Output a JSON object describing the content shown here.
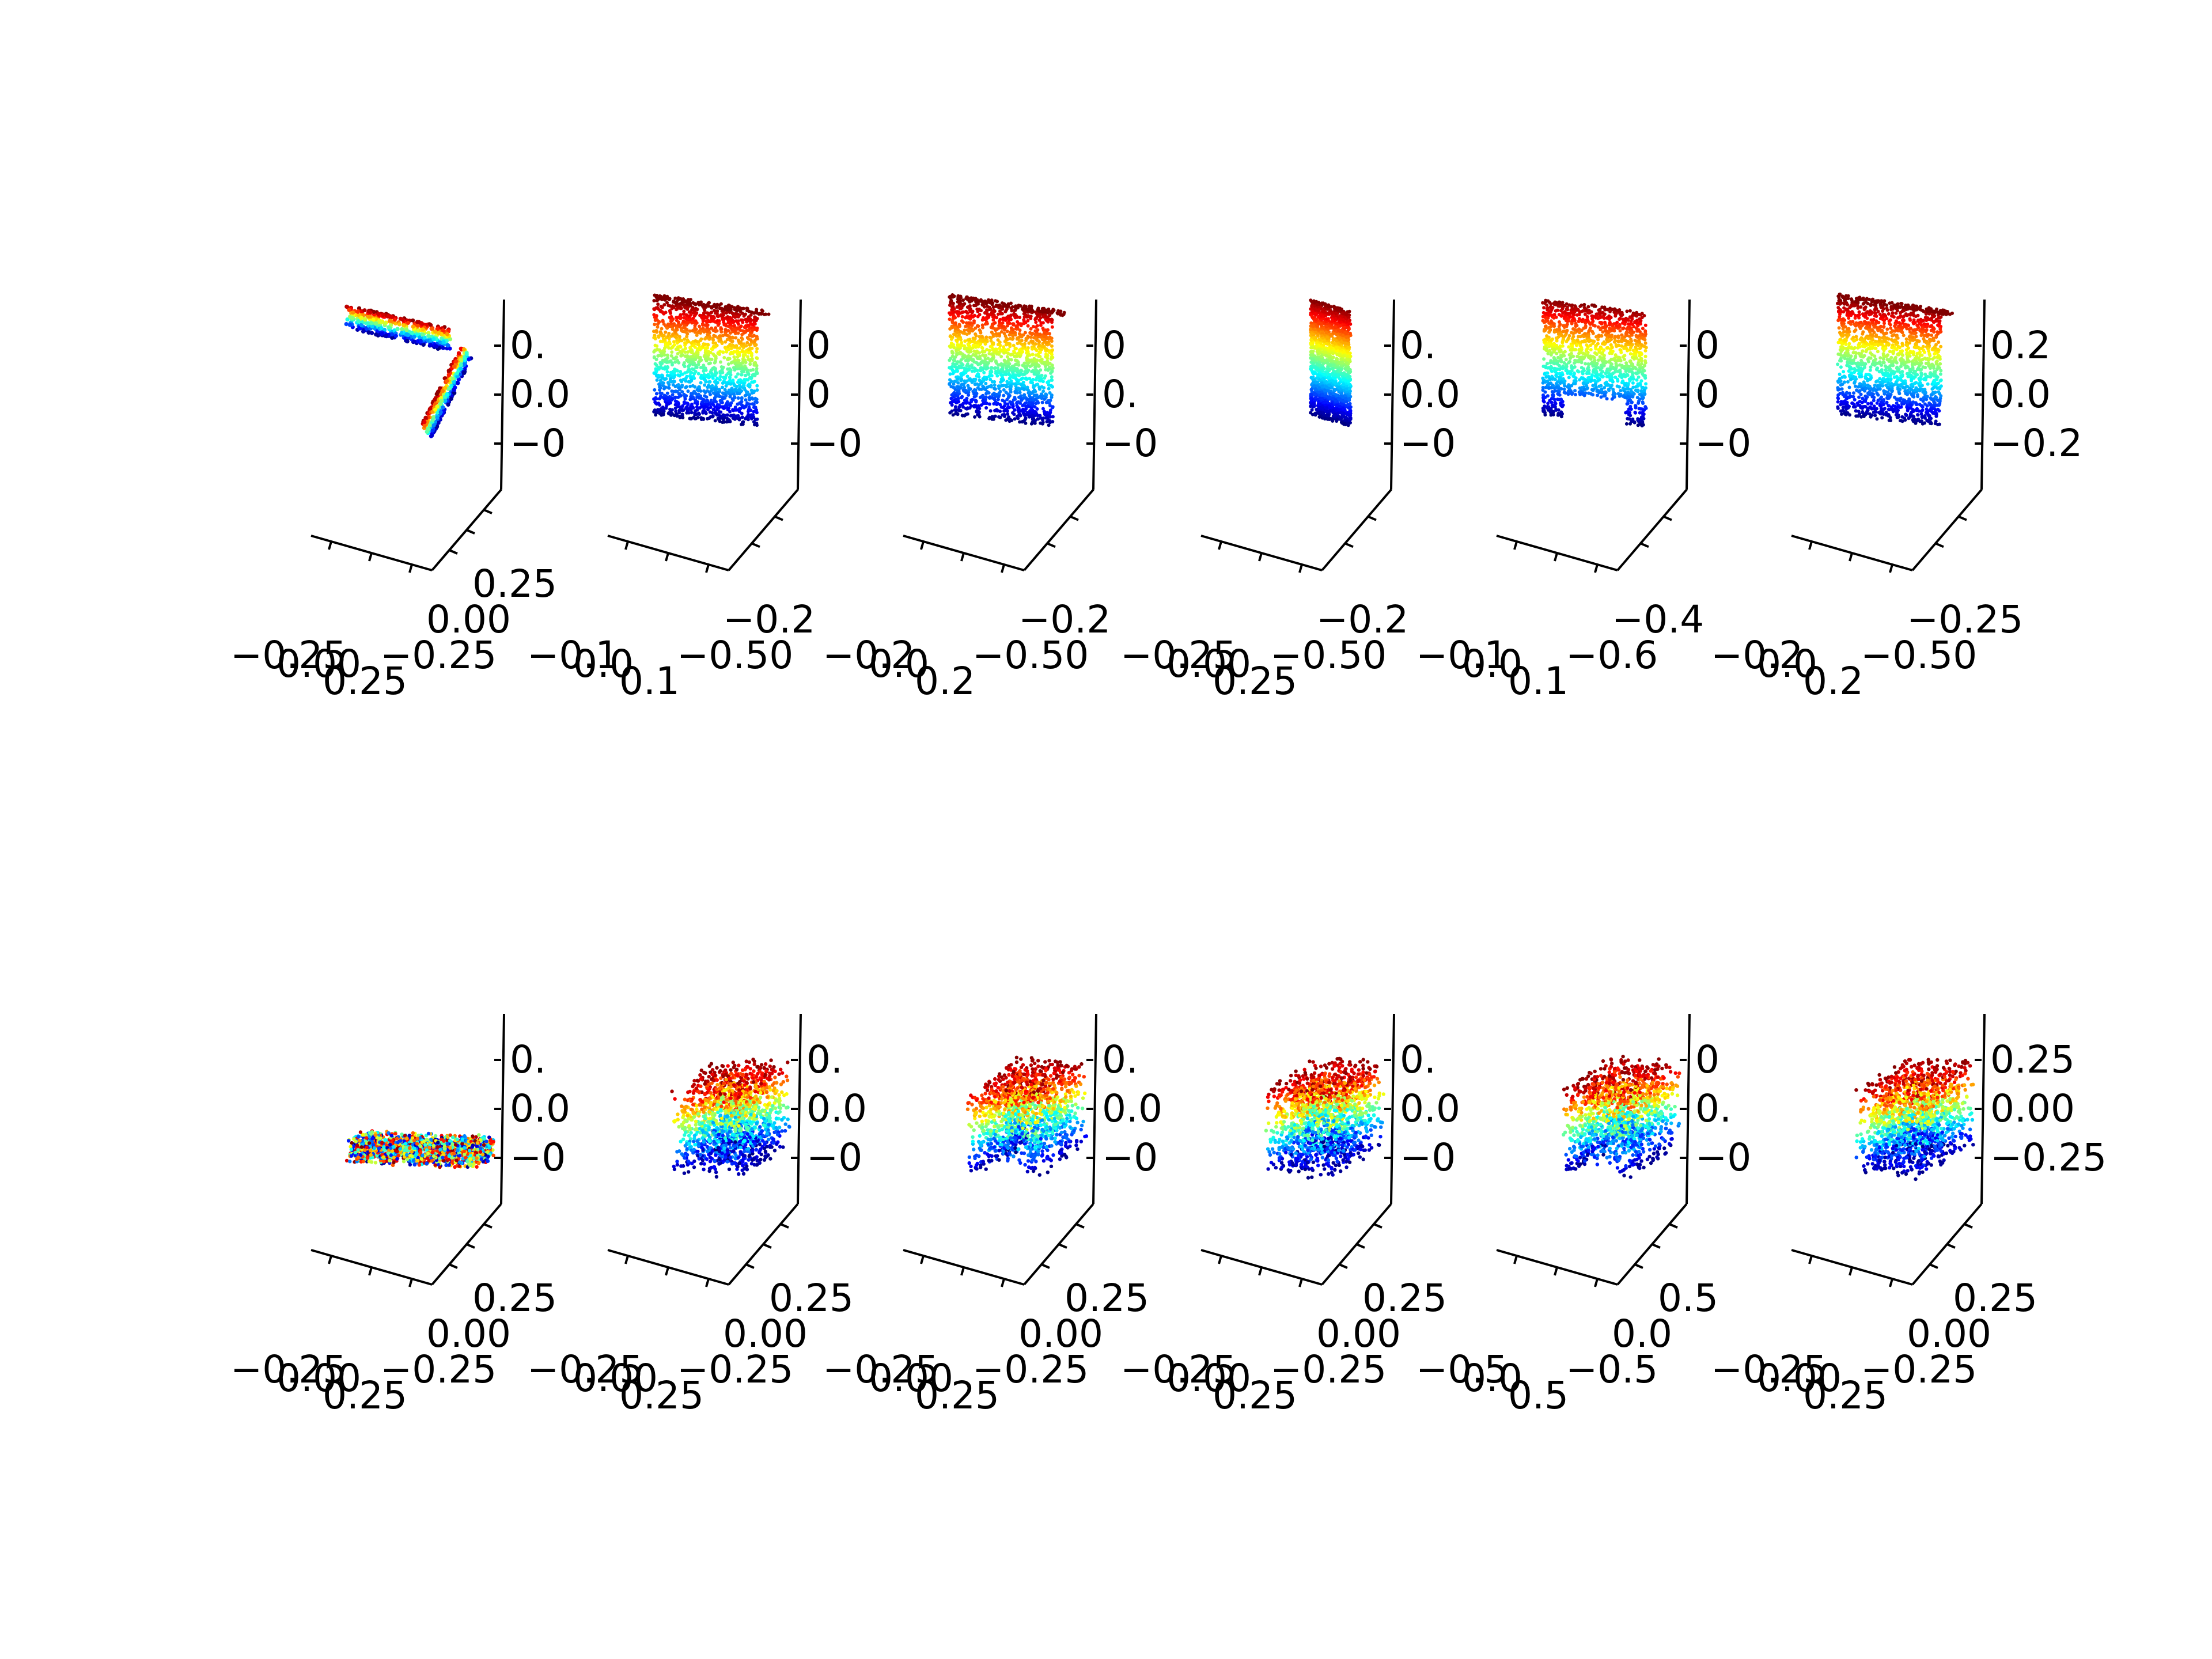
{
  "chart_data": {
    "type": "scatter",
    "projection": "3d",
    "grid": false,
    "colormap": "jet",
    "color_by": "z",
    "panels": [
      {
        "row": 1,
        "col": 1,
        "shape": "bent-strip",
        "zticks": [
          "0.",
          "0.0",
          "−0"
        ],
        "xticks": [
          "−0.25",
          "0.00",
          "0.25"
        ],
        "yticks": [
          "0.25",
          "0.00",
          "−0.25"
        ]
      },
      {
        "row": 1,
        "col": 2,
        "shape": "wall",
        "zticks": [
          "0",
          "0",
          "−0"
        ],
        "xticks": [
          "−0.1",
          "0.0",
          "0.1"
        ],
        "yticks": [
          "−0.2",
          "−0.50"
        ]
      },
      {
        "row": 1,
        "col": 3,
        "shape": "wall",
        "zticks": [
          "0",
          "0.",
          "−0"
        ],
        "xticks": [
          "−0.2",
          "0.0",
          "0.2"
        ],
        "yticks": [
          "−0.2",
          "−0.50"
        ]
      },
      {
        "row": 1,
        "col": 4,
        "shape": "narrow-wall",
        "zticks": [
          "0.",
          "0.0",
          "−0"
        ],
        "xticks": [
          "−0.25",
          "0.00",
          "0.25"
        ],
        "yticks": [
          "−0.2",
          "−0.50"
        ]
      },
      {
        "row": 1,
        "col": 5,
        "shape": "frame",
        "zticks": [
          "0",
          "0",
          "−0"
        ],
        "xticks": [
          "−0.1",
          "0.0",
          "0.1"
        ],
        "yticks": [
          "−0.4",
          "−0.6"
        ]
      },
      {
        "row": 1,
        "col": 6,
        "shape": "wall",
        "zticks": [
          "0.2",
          "0.0",
          "−0.2"
        ],
        "xticks": [
          "−0.2",
          "0.0",
          "0.2"
        ],
        "yticks": [
          "−0.25",
          "−0.50"
        ]
      },
      {
        "row": 2,
        "col": 1,
        "shape": "slab",
        "zticks": [
          "0.",
          "0.0",
          "−0"
        ],
        "xticks": [
          "−0.25",
          "0.00",
          "0.25"
        ],
        "yticks": [
          "0.25",
          "0.00",
          "−0.25"
        ]
      },
      {
        "row": 2,
        "col": 2,
        "shape": "box",
        "zticks": [
          "0.",
          "0.0",
          "−0"
        ],
        "xticks": [
          "−0.25",
          "0.00",
          "0.25"
        ],
        "yticks": [
          "0.25",
          "0.00",
          "−0.25"
        ]
      },
      {
        "row": 2,
        "col": 3,
        "shape": "box-legs",
        "zticks": [
          "0.",
          "0.0",
          "−0"
        ],
        "xticks": [
          "−0.25",
          "0.00",
          "0.25"
        ],
        "yticks": [
          "0.25",
          "0.00",
          "−0.25"
        ]
      },
      {
        "row": 2,
        "col": 4,
        "shape": "box",
        "zticks": [
          "0.",
          "0.0",
          "−0"
        ],
        "xticks": [
          "−0.25",
          "0.00",
          "0.25"
        ],
        "yticks": [
          "0.25",
          "0.00",
          "−0.25"
        ]
      },
      {
        "row": 2,
        "col": 5,
        "shape": "box-legs",
        "zticks": [
          "0",
          "0.",
          "−0"
        ],
        "xticks": [
          "−0.5",
          "0.0",
          "0.5"
        ],
        "yticks": [
          "0.5",
          "0.0",
          "−0.5"
        ]
      },
      {
        "row": 2,
        "col": 6,
        "shape": "box",
        "zticks": [
          "0.25",
          "0.00",
          "−0.25"
        ],
        "xticks": [
          "−0.25",
          "0.00",
          "0.25"
        ],
        "yticks": [
          "0.25",
          "0.00",
          "−0.25"
        ]
      }
    ]
  }
}
